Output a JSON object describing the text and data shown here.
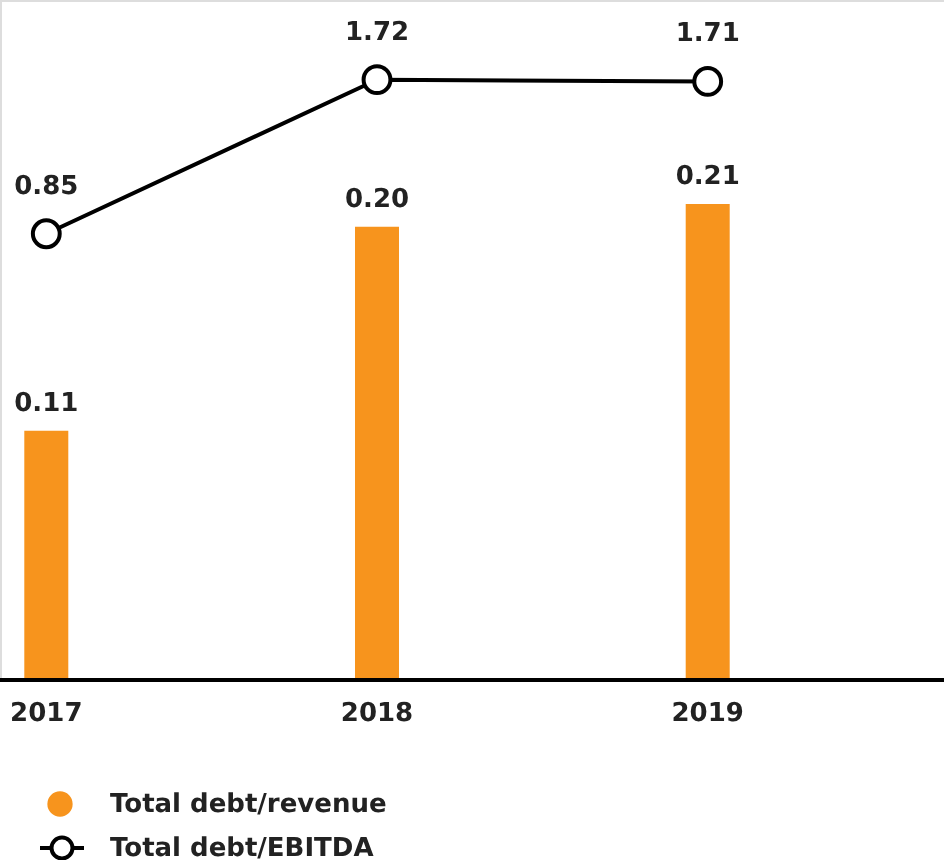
{
  "chart_data": {
    "type": "bar",
    "categories": [
      "2017",
      "2018",
      "2019"
    ],
    "series": [
      {
        "name": "Total debt/revenue",
        "color": "#f7941d",
        "values": [
          0.11,
          0.2,
          0.21
        ],
        "value_labels": [
          "0.11",
          "0.20",
          "0.21"
        ]
      },
      {
        "name": "Total debt/EBITDA",
        "type": "line",
        "axis": "y2",
        "color": "#000000",
        "values": [
          0.85,
          1.72,
          1.71
        ]
      }
    ],
    "ylim": [
      0,
      0.3
    ],
    "y2lim": [
      -1.67,
      2.17
    ],
    "data_labels": true,
    "tick_labels": "x",
    "marker": "circle",
    "line_style": "solid",
    "legend": "bottom left",
    "grid": false
  }
}
